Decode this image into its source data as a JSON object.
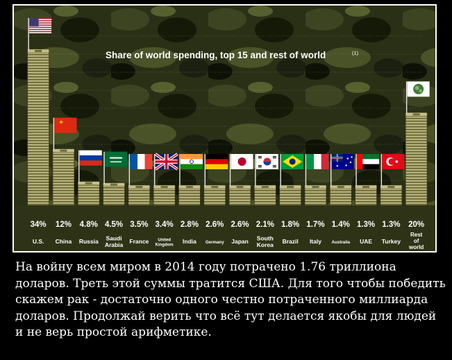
{
  "chart_data": {
    "type": "bar",
    "title": "Share of world spending, top 15 and rest of world",
    "title_note": "(1)",
    "categories": [
      "U.S.",
      "China",
      "Russia",
      "Saudi Arabia",
      "France",
      "United Kingdom",
      "India",
      "Germany",
      "Japan",
      "South Korea",
      "Brazil",
      "Italy",
      "Australia",
      "UAE",
      "Turkey",
      "Rest of world"
    ],
    "values": [
      34,
      12,
      4.8,
      4.5,
      3.5,
      3.4,
      2.8,
      2.6,
      2.6,
      2.1,
      1.8,
      1.7,
      1.4,
      1.3,
      1.3,
      20
    ],
    "value_labels": [
      "34%",
      "12%",
      "4.8%",
      "4.5%",
      "3.5%",
      "3.4%",
      "2.8%",
      "2.6%",
      "2.6%",
      "2.1%",
      "1.8%",
      "1.7%",
      "1.4%",
      "1.3%",
      "1.3%",
      "20%"
    ],
    "ylim": [
      0,
      34
    ],
    "grid": true,
    "bar_style": "stacks-of-banknotes",
    "background": "military-camouflage",
    "flags": [
      "flag-us",
      "flag-china",
      "flag-russia",
      "flag-saudi-arabia",
      "flag-france",
      "flag-uk",
      "flag-india",
      "flag-germany",
      "flag-japan",
      "flag-south-korea",
      "flag-brazil",
      "flag-italy",
      "flag-australia",
      "flag-uae",
      "flag-turkey",
      "flag-world"
    ]
  },
  "caption": {
    "text": "На войну всем миром в 2014 году потрачено   1.76 триллиона доларов. Треть этой суммы тратится США. Для того чтобы победить скажем рак -  достаточно одного честно потраченного миллиарда доларов. Продолжай верить что всё тут делается якобы для людей и не верь простой арифметике."
  },
  "colors": {
    "page_background": "#000000",
    "money": "#a9a66a",
    "label_text": "#ffffff",
    "camo_dark": "#1f2410"
  }
}
